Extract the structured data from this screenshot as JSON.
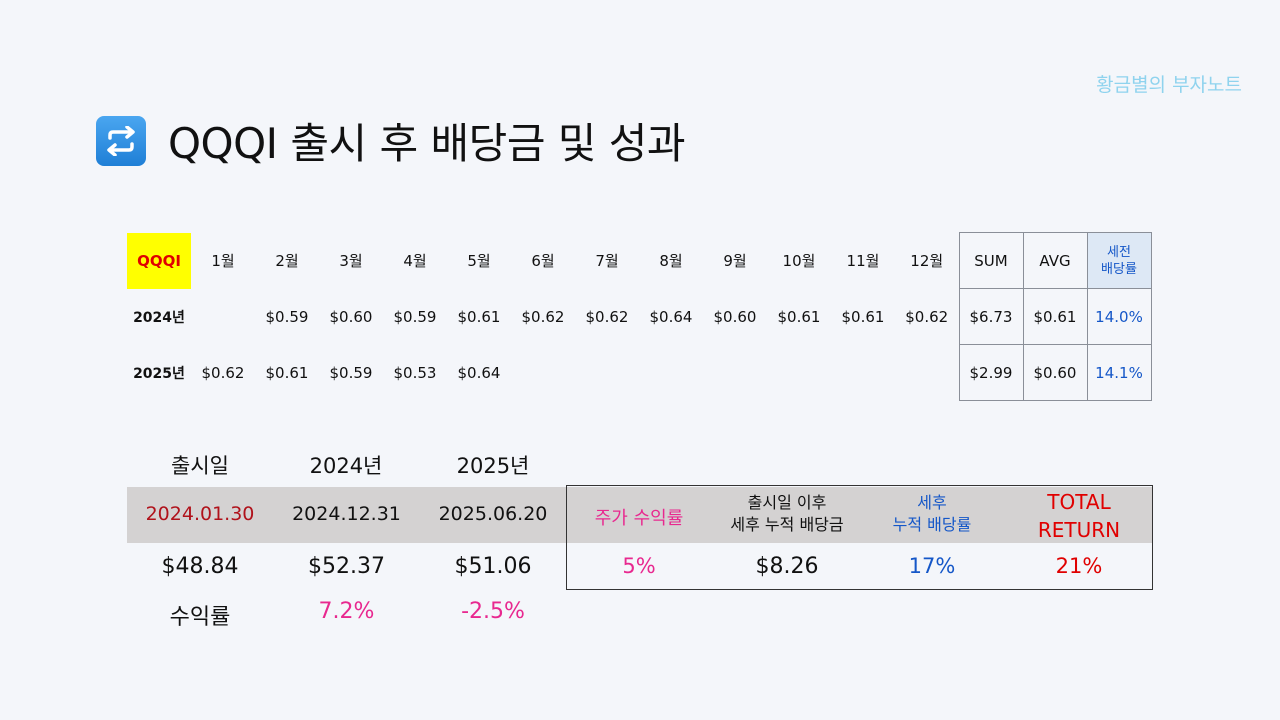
{
  "watermark": "황금별의 부자노트",
  "title": "QQQI 출시 후 배당금 및 성과",
  "title_icon": "repeat-icon",
  "monthly": {
    "ticker": "QQQI",
    "months": [
      "1월",
      "2월",
      "3월",
      "4월",
      "5월",
      "6월",
      "7월",
      "8월",
      "9월",
      "10월",
      "11월",
      "12월"
    ],
    "sum_label": "SUM",
    "avg_label": "AVG",
    "yield_label_1": "세전",
    "yield_label_2": "배당률",
    "rows": [
      {
        "year": "2024년",
        "values": [
          "",
          "$0.59",
          "$0.60",
          "$0.59",
          "$0.61",
          "$0.62",
          "$0.62",
          "$0.64",
          "$0.60",
          "$0.61",
          "$0.61",
          "$0.62"
        ],
        "sum": "$6.73",
        "avg": "$0.61",
        "yield": "14.0%"
      },
      {
        "year": "2025년",
        "values": [
          "$0.62",
          "$0.61",
          "$0.59",
          "$0.53",
          "$0.64",
          "",
          "",
          "",
          "",
          "",
          "",
          ""
        ],
        "sum": "$2.99",
        "avg": "$0.60",
        "yield": "14.1%"
      }
    ]
  },
  "performance": {
    "headers": [
      "출시일",
      "2024년",
      "2025년"
    ],
    "dates": [
      "2024.01.30",
      "2024.12.31",
      "2025.06.20"
    ],
    "prices": [
      "$48.84",
      "$52.37",
      "$51.06"
    ],
    "return_label": "수익률",
    "returns": [
      "7.2%",
      "-2.5%"
    ],
    "summary": {
      "price_return_label": "주가 수익률",
      "cum_div_label_1": "출시일 이후",
      "cum_div_label_2": "세후 누적 배당금",
      "after_tax_label_1": "세후",
      "after_tax_label_2": "누적 배당률",
      "total_label_1": "TOTAL",
      "total_label_2": "RETURN",
      "price_return": "5%",
      "cum_div": "$8.26",
      "after_tax_yield": "17%",
      "total_return": "21%"
    }
  },
  "colors": {
    "dark_red": "#b0121b",
    "pink": "#e8288f",
    "blue": "#1557c8",
    "red": "#e00000",
    "highlight_yellow": "#ffff00",
    "watermark": "#8fd3ee"
  }
}
